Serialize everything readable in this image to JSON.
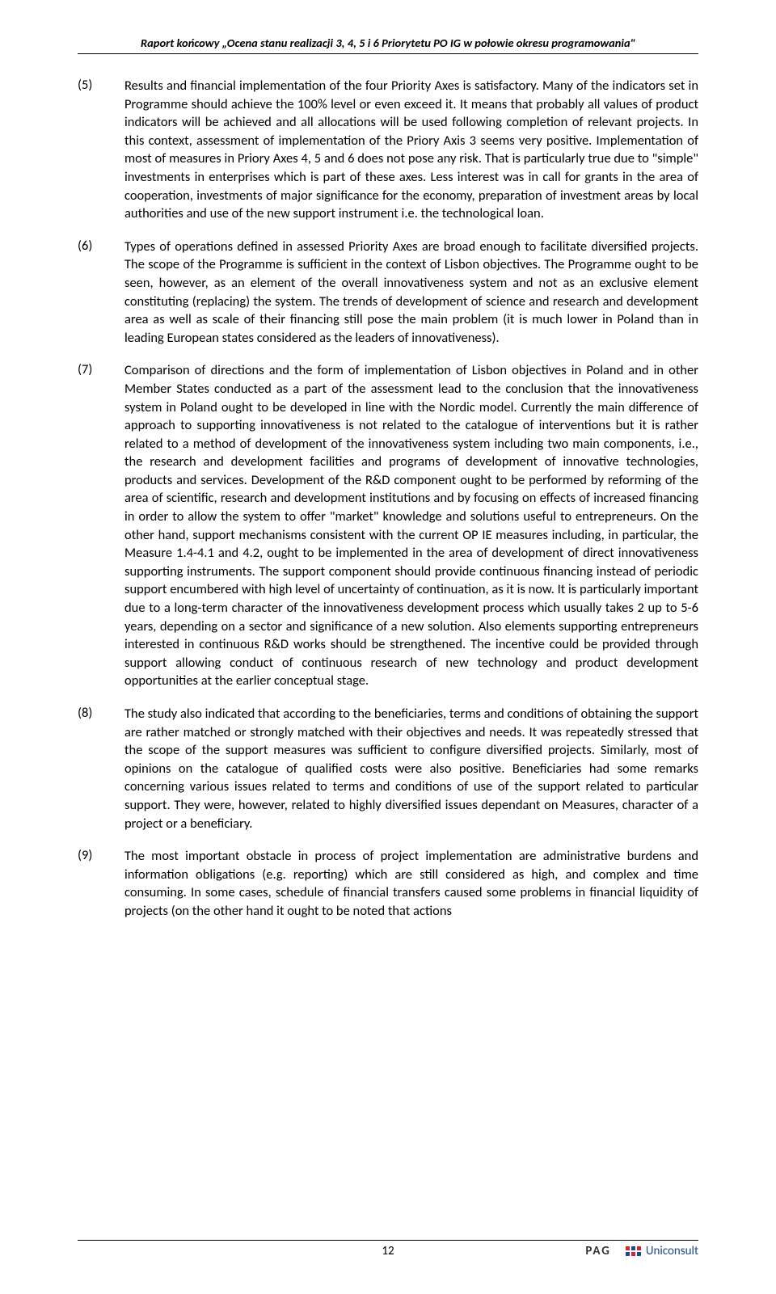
{
  "header": "Raport końcowy „Ocena stanu realizacji 3, 4, 5 i 6 Priorytetu PO IG w połowie okresu programowania\"",
  "entries": [
    {
      "num": "(5)",
      "text": "Results and financial implementation of the four Priority Axes is satisfactory. Many of the indicators set in Programme should achieve the 100% level or even exceed it. It means that probably all values of product indicators will be achieved and all allocations will be used following completion of relevant projects. In this context, assessment of implementation of the Priory Axis 3 seems very positive. Implementation of most of measures in Priory Axes 4, 5 and 6 does not pose any risk. That is particularly true due to \"simple\" investments in enterprises which is part of these axes. Less interest was in call for grants in the area of cooperation, investments of major significance for the economy, preparation of investment areas by local authorities and use of the new support instrument i.e. the technological loan."
    },
    {
      "num": "(6)",
      "text": "Types of operations defined in assessed Priority Axes are broad enough to facilitate diversified projects. The scope of the Programme is sufficient in the context of Lisbon objectives. The Programme ought to be seen, however, as an element of the overall innovativeness system and not as an exclusive element constituting (replacing) the system. The trends of development of science and research and development area as well as scale of their financing still pose the main problem (it is much lower in Poland than in leading European states considered as the leaders of innovativeness)."
    },
    {
      "num": "(7)",
      "text": "Comparison of directions and the form of implementation of Lisbon objectives in Poland and in other Member States conducted as a part of the assessment lead to the conclusion that the innovativeness system in Poland ought to be developed in line with the Nordic model. Currently the main difference of approach to supporting innovativeness is not related to the catalogue of interventions but it is rather related to a method of development of the innovativeness system including two main components, i.e., the research and development facilities and programs of development of innovative technologies, products and services. Development of the R&D component ought to be performed by reforming of the area of scientific, research and development institutions and by focusing on effects of increased financing in order to allow the system to offer \"market\" knowledge and solutions useful to entrepreneurs. On the other hand, support mechanisms consistent with the current OP IE measures including, in particular, the Measure 1.4-4.1 and 4.2, ought to be implemented in the area of development of direct innovativeness supporting instruments. The support component should provide continuous financing instead of periodic support encumbered with high level of uncertainty of continuation, as it is now. It is particularly important due to a long-term character of the innovativeness development process which usually takes 2 up to 5-6 years, depending on a sector and significance of a new solution. Also elements supporting entrepreneurs interested in continuous R&D works should be strengthened. The incentive could be provided through support allowing conduct of continuous research of new technology and product development opportunities at the earlier conceptual stage."
    },
    {
      "num": "(8)",
      "text": "The study also indicated that according to the beneficiaries, terms and conditions of obtaining the support are rather matched or strongly matched with their objectives and needs. It was repeatedly stressed that the scope of the support measures was sufficient to configure diversified projects. Similarly, most of opinions on the catalogue of qualified costs were also positive. Beneficiaries had some remarks concerning various issues related to terms and conditions of use of the support related to particular support. They were, however, related to highly diversified issues dependant on Measures, character of a project or a beneficiary."
    },
    {
      "num": "(9)",
      "text": "The most important obstacle in process of project implementation are administrative burdens and information obligations (e.g. reporting) which are still considered as high, and complex and time consuming. In some cases, schedule of financial transfers caused some problems in financial liquidity of projects (on the other hand it ought to be noted that actions"
    }
  ],
  "pageNumber": "12",
  "logos": {
    "pag": "PAG",
    "uniconsult": "Uniconsult",
    "dotColors": [
      "#d9232e",
      "#1a4a8a",
      "#d9232e",
      "#1a4a8a",
      "#d9232e",
      "#1a4a8a"
    ]
  }
}
